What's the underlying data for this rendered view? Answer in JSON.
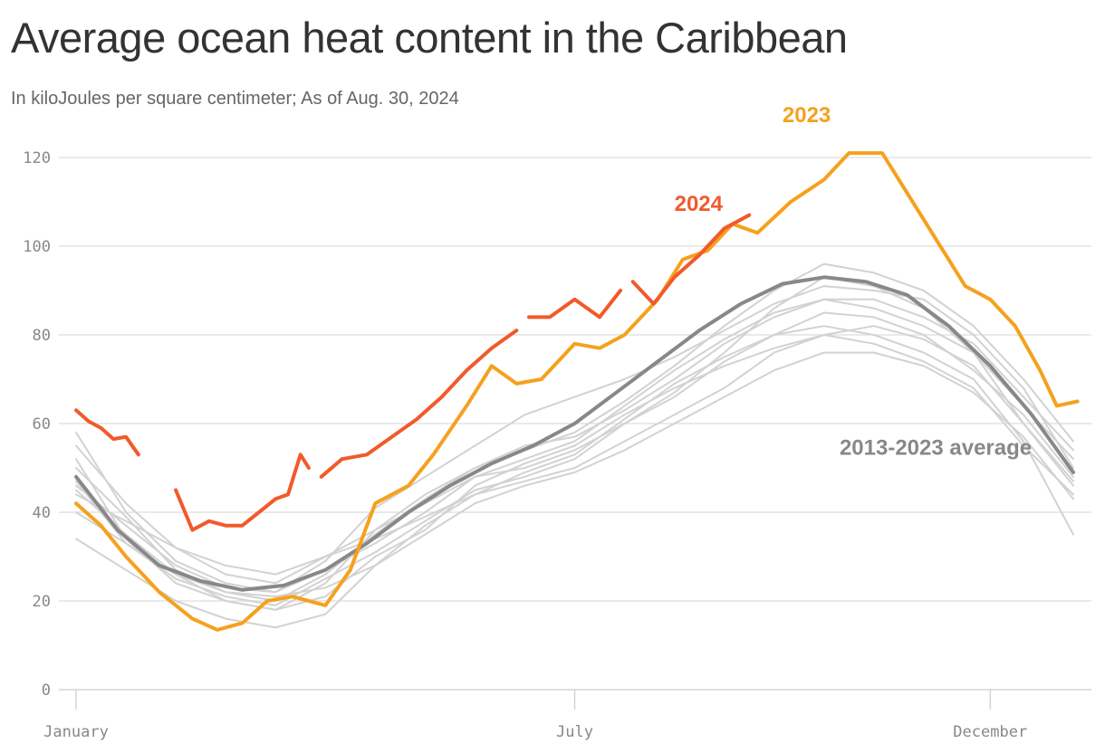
{
  "header": {
    "title": "Average ocean heat content in the Caribbean",
    "subtitle": "In kiloJoules per square centimeter; As of Aug. 30, 2024"
  },
  "chart_data": {
    "type": "line",
    "title": "Average ocean heat content in the Caribbean",
    "subtitle": "In kiloJoules per square centimeter; As of Aug. 30, 2024",
    "x_unit": "month",
    "xlim": [
      1,
      13.2
    ],
    "ylim": [
      0,
      125
    ],
    "y_ticks": [
      0,
      20,
      40,
      60,
      80,
      100,
      120
    ],
    "x_ticks": [
      {
        "x": 1,
        "label": "January"
      },
      {
        "x": 7,
        "label": "July"
      },
      {
        "x": 12,
        "label": "December"
      }
    ],
    "grid": true,
    "legend": "direct labels on lines",
    "colors": {
      "2024": "#f15a2b",
      "2023": "#f5a11d",
      "average": "#888888",
      "other_years": "#d2d2d2",
      "grid": "#dddddd"
    },
    "series": [
      {
        "name": "2024",
        "key": "2024",
        "label_pos": [
          8.2,
          108
        ],
        "segments": [
          [
            [
              1,
              63
            ],
            [
              1.15,
              60.5
            ],
            [
              1.3,
              59
            ],
            [
              1.45,
              56.5
            ],
            [
              1.6,
              57
            ],
            [
              1.75,
              53
            ]
          ],
          [
            [
              2.2,
              45
            ],
            [
              2.4,
              36
            ],
            [
              2.6,
              38
            ],
            [
              2.8,
              37
            ],
            [
              3,
              37
            ],
            [
              3.2,
              40
            ],
            [
              3.4,
              43
            ],
            [
              3.55,
              44
            ],
            [
              3.7,
              53
            ],
            [
              3.8,
              50
            ]
          ],
          [
            [
              3.95,
              48
            ],
            [
              4.2,
              52
            ],
            [
              4.5,
              53
            ],
            [
              4.8,
              57
            ],
            [
              5.1,
              61
            ],
            [
              5.4,
              66
            ],
            [
              5.7,
              72
            ],
            [
              6,
              77
            ],
            [
              6.3,
              81
            ]
          ],
          [
            [
              6.45,
              84
            ],
            [
              6.7,
              84
            ],
            [
              7,
              88
            ],
            [
              7.3,
              84
            ],
            [
              7.55,
              90
            ]
          ],
          [
            [
              7.7,
              92
            ],
            [
              7.95,
              87
            ],
            [
              8.2,
              93
            ],
            [
              8.5,
              98
            ],
            [
              8.8,
              104
            ],
            [
              9.1,
              107
            ]
          ]
        ]
      },
      {
        "name": "2023",
        "key": "2023",
        "label_pos": [
          9.5,
          128
        ],
        "segments": [
          [
            [
              1,
              42
            ],
            [
              1.3,
              37
            ],
            [
              1.6,
              30
            ],
            [
              2,
              22
            ],
            [
              2.4,
              16
            ],
            [
              2.7,
              13.5
            ],
            [
              3,
              15
            ],
            [
              3.3,
              20
            ],
            [
              3.6,
              21
            ],
            [
              4,
              19
            ],
            [
              4.3,
              27
            ],
            [
              4.6,
              42
            ],
            [
              5,
              46
            ],
            [
              5.3,
              53
            ],
            [
              5.7,
              64
            ],
            [
              6,
              73
            ],
            [
              6.3,
              69
            ],
            [
              6.6,
              70
            ],
            [
              7,
              78
            ],
            [
              7.3,
              77
            ],
            [
              7.6,
              80
            ],
            [
              8,
              88
            ],
            [
              8.3,
              97
            ],
            [
              8.6,
              99
            ],
            [
              8.9,
              105
            ],
            [
              9.2,
              103
            ],
            [
              9.6,
              110
            ],
            [
              10,
              115
            ],
            [
              10.3,
              121
            ],
            [
              10.7,
              121
            ],
            [
              11,
              112
            ],
            [
              11.3,
              103
            ],
            [
              11.7,
              91
            ],
            [
              12,
              88
            ],
            [
              12.3,
              82
            ],
            [
              12.6,
              72
            ],
            [
              12.8,
              64
            ],
            [
              13.05,
              65
            ]
          ]
        ]
      },
      {
        "name": "2013-2023 average",
        "key": "average",
        "label_pos": [
          12.5,
          53
        ],
        "segments": [
          [
            [
              1,
              48
            ],
            [
              1.5,
              36
            ],
            [
              2,
              28
            ],
            [
              2.5,
              24.5
            ],
            [
              3,
              22.5
            ],
            [
              3.5,
              23.5
            ],
            [
              4,
              27
            ],
            [
              4.5,
              33
            ],
            [
              5,
              40
            ],
            [
              5.5,
              46
            ],
            [
              6,
              51
            ],
            [
              6.5,
              55
            ],
            [
              7,
              60
            ],
            [
              7.5,
              67
            ],
            [
              8,
              74
            ],
            [
              8.5,
              81
            ],
            [
              9,
              87
            ],
            [
              9.5,
              91.5
            ],
            [
              10,
              93
            ],
            [
              10.5,
              92
            ],
            [
              11,
              89
            ],
            [
              11.5,
              82
            ],
            [
              12,
              73
            ],
            [
              12.5,
              62
            ],
            [
              13,
              49
            ]
          ]
        ]
      }
    ],
    "other_years": [
      [
        [
          1,
          58
        ],
        [
          1.6,
          40
        ],
        [
          2.2,
          29
        ],
        [
          2.8,
          24
        ],
        [
          3.4,
          22
        ],
        [
          4,
          29
        ],
        [
          4.6,
          41
        ],
        [
          5.2,
          48
        ],
        [
          5.8,
          55
        ],
        [
          6.4,
          62
        ],
        [
          7,
          66
        ],
        [
          7.6,
          70
        ],
        [
          8.2,
          75
        ],
        [
          8.8,
          81
        ],
        [
          9.4,
          87
        ],
        [
          10,
          91
        ],
        [
          10.6,
          90
        ],
        [
          11.2,
          88
        ],
        [
          11.8,
          80
        ],
        [
          12.4,
          68
        ],
        [
          13,
          50
        ]
      ],
      [
        [
          1,
          52
        ],
        [
          1.6,
          34
        ],
        [
          2.2,
          24
        ],
        [
          2.8,
          20
        ],
        [
          3.4,
          18
        ],
        [
          4,
          24
        ],
        [
          4.6,
          36
        ],
        [
          5.2,
          42
        ],
        [
          5.8,
          48
        ],
        [
          6.4,
          52
        ],
        [
          7,
          56
        ],
        [
          7.6,
          64
        ],
        [
          8.2,
          72
        ],
        [
          8.8,
          79
        ],
        [
          9.4,
          85
        ],
        [
          10,
          88
        ],
        [
          10.6,
          86
        ],
        [
          11.2,
          82
        ],
        [
          11.8,
          76
        ],
        [
          12.4,
          60
        ],
        [
          13,
          46
        ]
      ],
      [
        [
          1,
          34
        ],
        [
          1.6,
          27
        ],
        [
          2.2,
          20
        ],
        [
          2.8,
          16
        ],
        [
          3.4,
          14
        ],
        [
          4,
          17
        ],
        [
          4.6,
          28
        ],
        [
          5.2,
          37
        ],
        [
          5.8,
          44
        ],
        [
          6.4,
          49
        ],
        [
          7,
          53
        ],
        [
          7.6,
          61
        ],
        [
          8.2,
          69
        ],
        [
          8.8,
          75
        ],
        [
          9.4,
          80
        ],
        [
          10,
          82
        ],
        [
          10.6,
          80
        ],
        [
          11.2,
          76
        ],
        [
          11.8,
          70
        ],
        [
          12.4,
          56
        ],
        [
          13,
          35
        ]
      ],
      [
        [
          1,
          46
        ],
        [
          1.6,
          37
        ],
        [
          2.2,
          28
        ],
        [
          2.8,
          23
        ],
        [
          3.4,
          22
        ],
        [
          4,
          27
        ],
        [
          4.6,
          33
        ],
        [
          5.2,
          40
        ],
        [
          5.8,
          48
        ],
        [
          6.4,
          50
        ],
        [
          7,
          54
        ],
        [
          7.6,
          60
        ],
        [
          8.2,
          66
        ],
        [
          8.8,
          74
        ],
        [
          9.4,
          80
        ],
        [
          10,
          85
        ],
        [
          10.6,
          84
        ],
        [
          11.2,
          80
        ],
        [
          11.8,
          72
        ],
        [
          12.4,
          62
        ],
        [
          13,
          48
        ]
      ],
      [
        [
          1,
          44
        ],
        [
          1.6,
          38
        ],
        [
          2.2,
          32
        ],
        [
          2.8,
          28
        ],
        [
          3.4,
          26
        ],
        [
          4,
          30
        ],
        [
          4.6,
          34
        ],
        [
          5.2,
          39
        ],
        [
          5.8,
          44
        ],
        [
          6.4,
          47
        ],
        [
          7,
          50
        ],
        [
          7.6,
          56
        ],
        [
          8.2,
          62
        ],
        [
          8.8,
          68
        ],
        [
          9.4,
          76
        ],
        [
          10,
          80
        ],
        [
          10.6,
          78
        ],
        [
          11.2,
          74
        ],
        [
          11.8,
          68
        ],
        [
          12.4,
          55
        ],
        [
          13,
          44
        ]
      ],
      [
        [
          1,
          55
        ],
        [
          1.6,
          42
        ],
        [
          2.2,
          32
        ],
        [
          2.8,
          26
        ],
        [
          3.4,
          24
        ],
        [
          4,
          30
        ],
        [
          4.6,
          36
        ],
        [
          5.2,
          44
        ],
        [
          5.8,
          50
        ],
        [
          6.4,
          54
        ],
        [
          7,
          58
        ],
        [
          7.6,
          65
        ],
        [
          8.2,
          73
        ],
        [
          8.8,
          82
        ],
        [
          9.4,
          90
        ],
        [
          10,
          96
        ],
        [
          10.6,
          94
        ],
        [
          11.2,
          90
        ],
        [
          11.8,
          82
        ],
        [
          12.4,
          70
        ],
        [
          13,
          56
        ]
      ],
      [
        [
          1,
          47
        ],
        [
          1.6,
          33
        ],
        [
          2.2,
          25
        ],
        [
          2.8,
          21
        ],
        [
          3.4,
          19
        ],
        [
          4,
          25
        ],
        [
          4.6,
          31
        ],
        [
          5.2,
          38
        ],
        [
          5.8,
          45
        ],
        [
          6.4,
          48
        ],
        [
          7,
          52
        ],
        [
          7.6,
          60
        ],
        [
          8.2,
          67
        ],
        [
          8.8,
          76
        ],
        [
          9.4,
          86
        ],
        [
          10,
          93
        ],
        [
          10.6,
          91
        ],
        [
          11.2,
          86
        ],
        [
          11.8,
          76
        ],
        [
          12.4,
          64
        ],
        [
          13,
          52
        ]
      ],
      [
        [
          1,
          50
        ],
        [
          1.6,
          39
        ],
        [
          2.2,
          27
        ],
        [
          2.8,
          22
        ],
        [
          3.4,
          20
        ],
        [
          4,
          26
        ],
        [
          4.6,
          35
        ],
        [
          5.2,
          43
        ],
        [
          5.8,
          50
        ],
        [
          6.4,
          55
        ],
        [
          7,
          57
        ],
        [
          7.6,
          63
        ],
        [
          8.2,
          70
        ],
        [
          8.8,
          78
        ],
        [
          9.4,
          84
        ],
        [
          10,
          88
        ],
        [
          10.6,
          88
        ],
        [
          11.2,
          84
        ],
        [
          11.8,
          78
        ],
        [
          12.4,
          66
        ],
        [
          13,
          54
        ]
      ],
      [
        [
          1,
          45
        ],
        [
          1.6,
          35
        ],
        [
          2.2,
          26
        ],
        [
          2.8,
          20
        ],
        [
          3.4,
          18
        ],
        [
          4,
          21
        ],
        [
          4.6,
          30
        ],
        [
          5.2,
          36
        ],
        [
          5.8,
          46
        ],
        [
          6.4,
          51
        ],
        [
          7,
          55
        ],
        [
          7.6,
          62
        ],
        [
          8.2,
          68
        ],
        [
          8.8,
          73
        ],
        [
          9.4,
          77
        ],
        [
          10,
          80
        ],
        [
          10.6,
          82
        ],
        [
          11.2,
          79
        ],
        [
          11.8,
          73
        ],
        [
          12.4,
          60
        ],
        [
          13,
          47
        ]
      ],
      [
        [
          1,
          40
        ],
        [
          1.6,
          33
        ],
        [
          2.2,
          26
        ],
        [
          2.8,
          22
        ],
        [
          3.4,
          21
        ],
        [
          4,
          23
        ],
        [
          4.6,
          28
        ],
        [
          5.2,
          35
        ],
        [
          5.8,
          42
        ],
        [
          6.4,
          46
        ],
        [
          7,
          49
        ],
        [
          7.6,
          54
        ],
        [
          8.2,
          60
        ],
        [
          8.8,
          66
        ],
        [
          9.4,
          72
        ],
        [
          10,
          76
        ],
        [
          10.6,
          76
        ],
        [
          11.2,
          73
        ],
        [
          11.8,
          67
        ],
        [
          12.4,
          57
        ],
        [
          13,
          43
        ]
      ]
    ]
  }
}
